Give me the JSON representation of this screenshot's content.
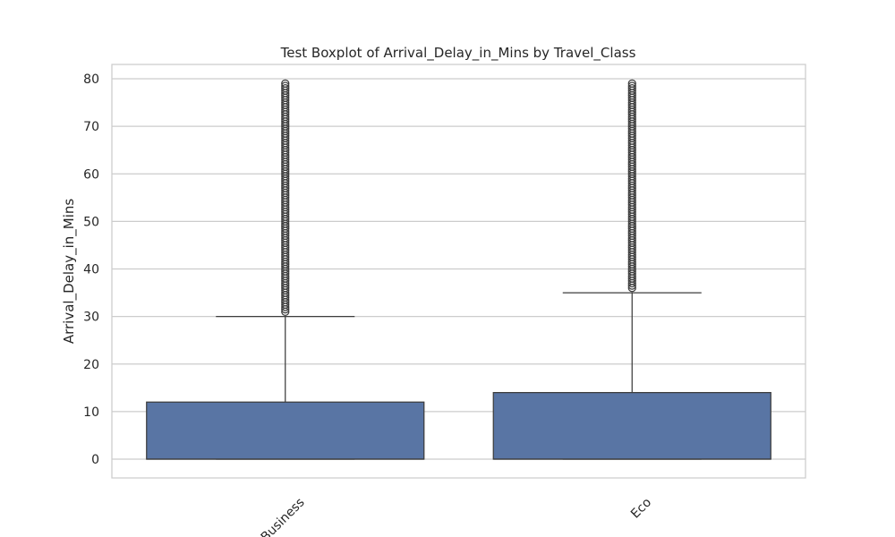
{
  "chart_data": {
    "type": "boxplot",
    "title": "Test Boxplot of Arrival_Delay_in_Mins by Travel_Class",
    "xlabel": "",
    "ylabel": "Arrival_Delay_in_Mins",
    "categories": [
      "Business",
      "Eco"
    ],
    "y_ticks": [
      0,
      10,
      20,
      30,
      40,
      50,
      60,
      70,
      80
    ],
    "ylim": [
      -4,
      83
    ],
    "grid": true,
    "box_color": "#5975a4",
    "edge_color": "#3d3d3d",
    "boxes": [
      {
        "category": "Business",
        "q1": 0,
        "median": 0,
        "q3": 12,
        "whisker_low": 0,
        "whisker_high": 30,
        "outlier_min": 31,
        "outlier_max": 79
      },
      {
        "category": "Eco",
        "q1": 0,
        "median": 0,
        "q3": 14,
        "whisker_low": 0,
        "whisker_high": 35,
        "outlier_min": 36,
        "outlier_max": 79
      }
    ]
  }
}
